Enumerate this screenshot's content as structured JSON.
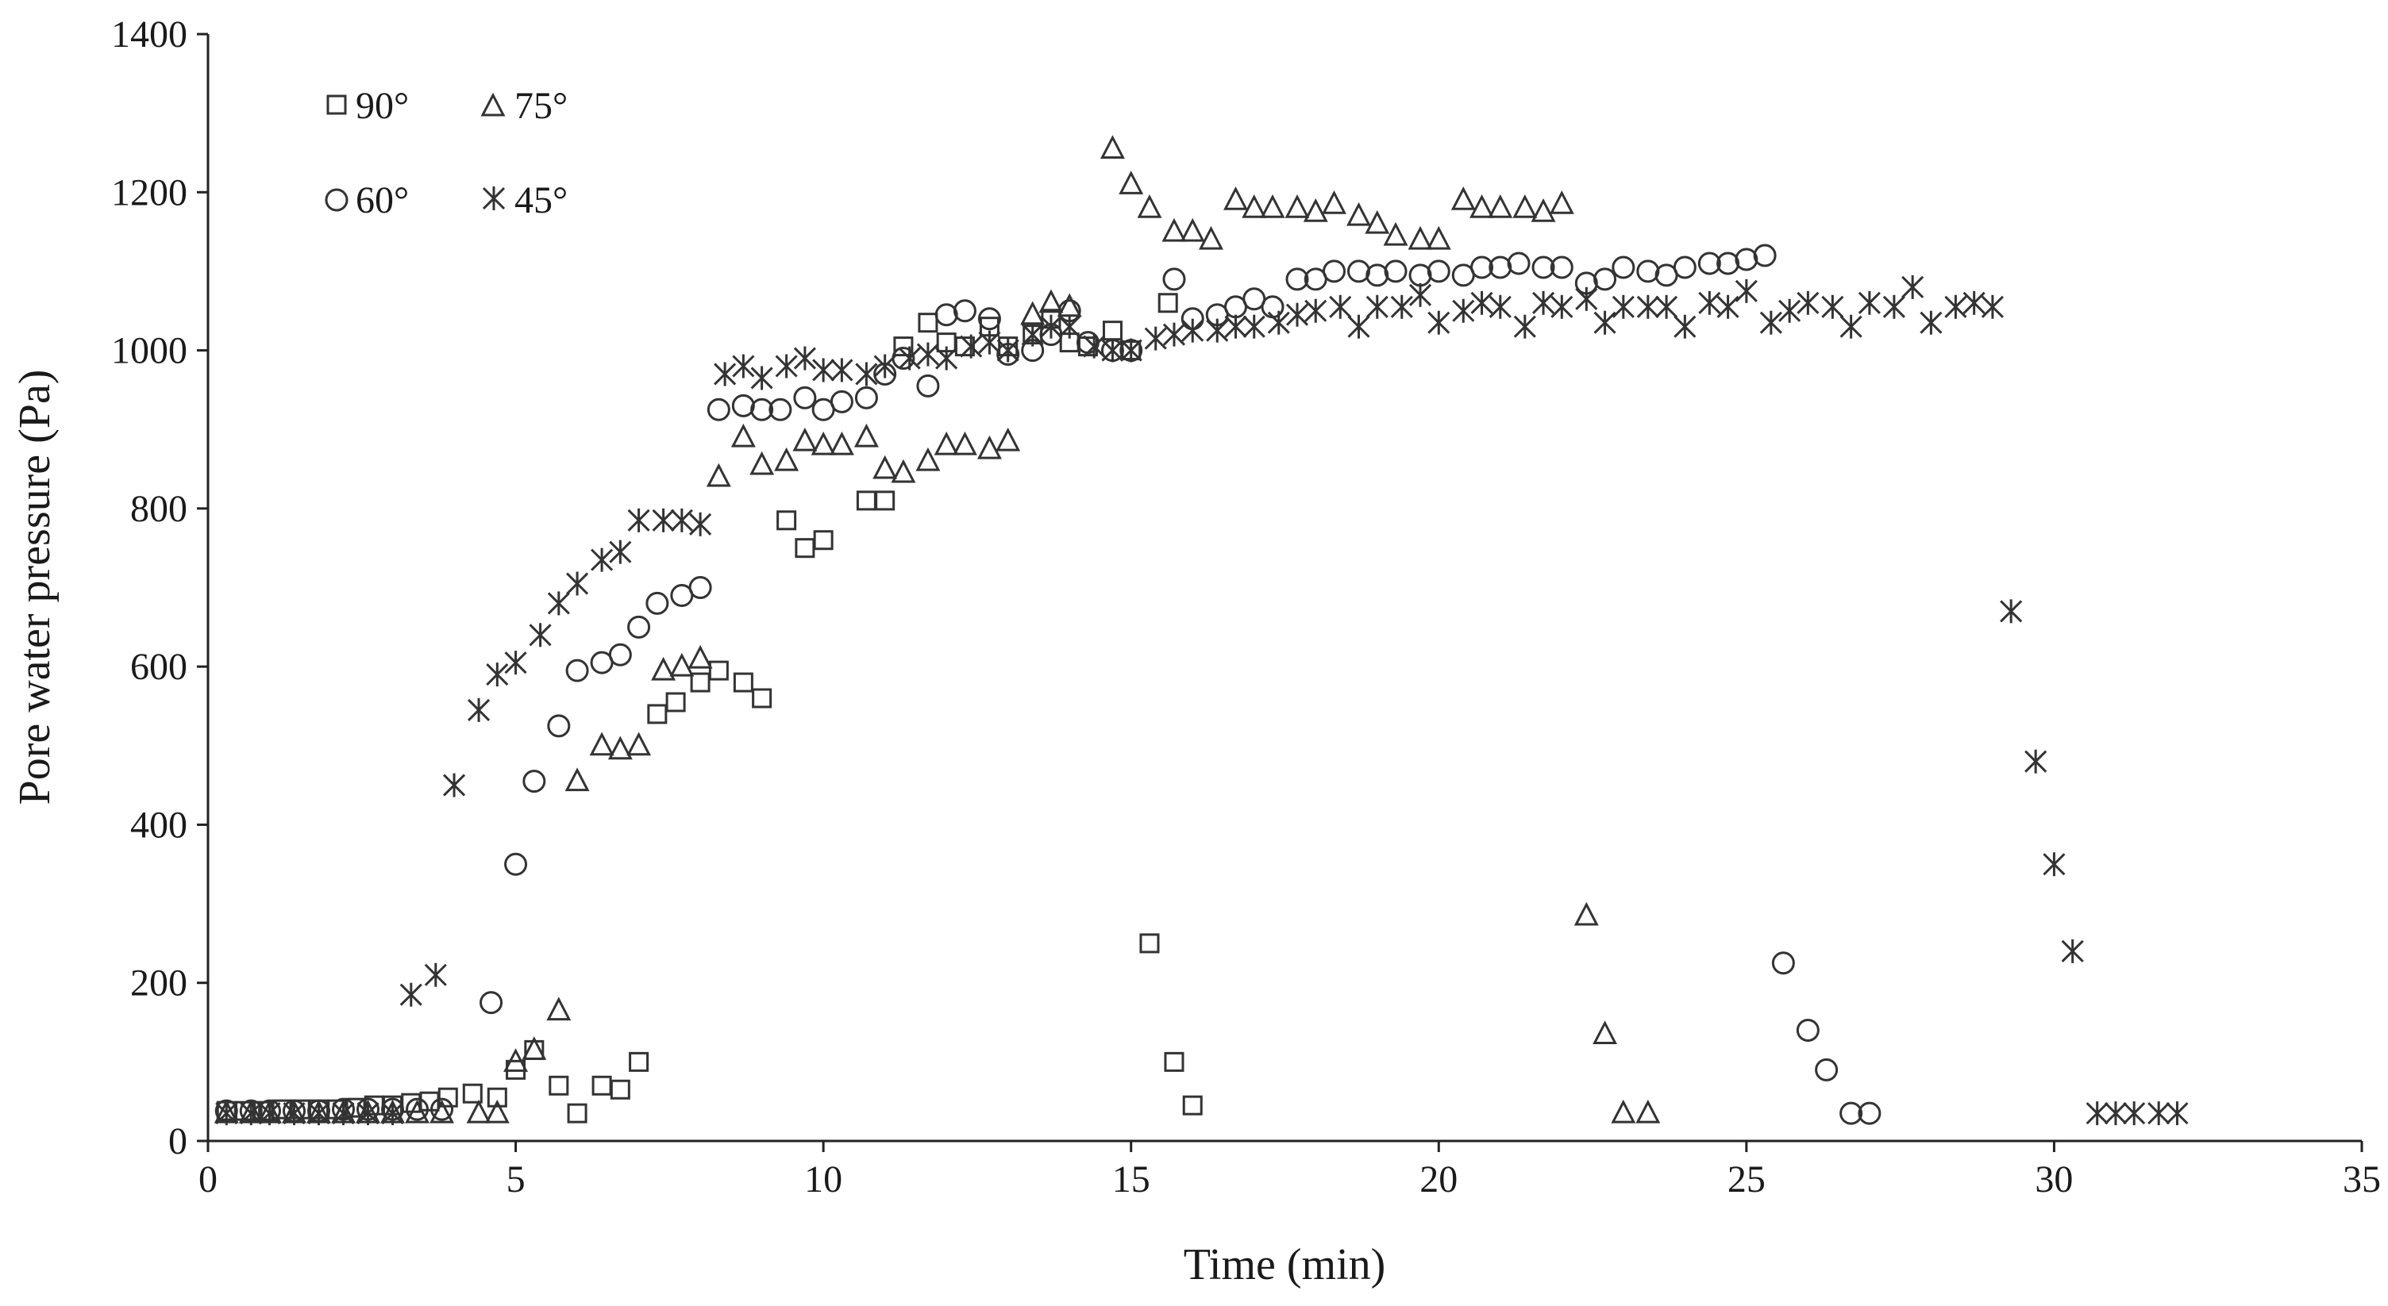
{
  "chart_data": {
    "type": "scatter",
    "title": "",
    "xlabel": "Time (min)",
    "ylabel": "Pore water pressure (Pa)",
    "xlim": [
      0,
      35
    ],
    "ylim": [
      0,
      1400
    ],
    "xticks": [
      "0",
      "5",
      "10",
      "15",
      "20",
      "25",
      "30",
      "35"
    ],
    "yticks": [
      "0",
      "200",
      "400",
      "600",
      "800",
      "1000",
      "1200",
      "1400"
    ],
    "grid": false,
    "legend_position": "top-left",
    "series": [
      {
        "name": "90°",
        "marker": "square",
        "points": [
          [
            0.3,
            38
          ],
          [
            0.6,
            38
          ],
          [
            0.9,
            38
          ],
          [
            1.2,
            40
          ],
          [
            1.5,
            40
          ],
          [
            1.8,
            40
          ],
          [
            2.1,
            40
          ],
          [
            2.4,
            42
          ],
          [
            2.7,
            45
          ],
          [
            3.0,
            45
          ],
          [
            3.3,
            48
          ],
          [
            3.6,
            50
          ],
          [
            3.9,
            55
          ],
          [
            4.3,
            60
          ],
          [
            4.7,
            55
          ],
          [
            5.0,
            90
          ],
          [
            5.3,
            115
          ],
          [
            5.7,
            70
          ],
          [
            6.0,
            35
          ],
          [
            6.4,
            70
          ],
          [
            6.7,
            65
          ],
          [
            7.0,
            100
          ],
          [
            7.3,
            540
          ],
          [
            7.6,
            555
          ],
          [
            8.0,
            580
          ],
          [
            8.3,
            595
          ],
          [
            8.7,
            580
          ],
          [
            9.0,
            560
          ],
          [
            9.4,
            785
          ],
          [
            9.7,
            750
          ],
          [
            10.0,
            760
          ],
          [
            10.7,
            810
          ],
          [
            11.0,
            810
          ],
          [
            11.3,
            1005
          ],
          [
            11.7,
            1035
          ],
          [
            12.0,
            1010
          ],
          [
            12.3,
            1005
          ],
          [
            12.7,
            1030
          ],
          [
            13.0,
            1005
          ],
          [
            13.4,
            1020
          ],
          [
            13.7,
            1040
          ],
          [
            14.0,
            1010
          ],
          [
            14.3,
            1005
          ],
          [
            14.7,
            1025
          ],
          [
            15.0,
            1000
          ],
          [
            15.3,
            250
          ],
          [
            15.6,
            1060
          ],
          [
            15.7,
            100
          ],
          [
            16.0,
            45
          ]
        ]
      },
      {
        "name": "75°",
        "marker": "triangle",
        "points": [
          [
            0.3,
            35
          ],
          [
            0.7,
            35
          ],
          [
            1.0,
            35
          ],
          [
            1.4,
            35
          ],
          [
            1.8,
            35
          ],
          [
            2.2,
            35
          ],
          [
            2.6,
            35
          ],
          [
            3.0,
            35
          ],
          [
            3.4,
            35
          ],
          [
            3.8,
            35
          ],
          [
            4.4,
            35
          ],
          [
            4.7,
            35
          ],
          [
            5.0,
            100
          ],
          [
            5.3,
            115
          ],
          [
            5.7,
            165
          ],
          [
            6.0,
            455
          ],
          [
            6.4,
            500
          ],
          [
            6.7,
            495
          ],
          [
            7.0,
            500
          ],
          [
            7.4,
            595
          ],
          [
            7.7,
            600
          ],
          [
            8.0,
            610
          ],
          [
            8.3,
            840
          ],
          [
            8.7,
            890
          ],
          [
            9.0,
            855
          ],
          [
            9.4,
            860
          ],
          [
            9.7,
            885
          ],
          [
            10.0,
            880
          ],
          [
            10.3,
            880
          ],
          [
            10.7,
            890
          ],
          [
            11.0,
            850
          ],
          [
            11.3,
            845
          ],
          [
            11.7,
            860
          ],
          [
            12.0,
            880
          ],
          [
            12.3,
            880
          ],
          [
            12.7,
            875
          ],
          [
            13.0,
            885
          ],
          [
            13.4,
            1045
          ],
          [
            13.7,
            1060
          ],
          [
            14.0,
            1055
          ],
          [
            14.7,
            1255
          ],
          [
            15.0,
            1210
          ],
          [
            15.3,
            1180
          ],
          [
            15.7,
            1150
          ],
          [
            16.0,
            1150
          ],
          [
            16.3,
            1140
          ],
          [
            16.7,
            1190
          ],
          [
            17.0,
            1180
          ],
          [
            17.3,
            1180
          ],
          [
            17.7,
            1180
          ],
          [
            18.0,
            1175
          ],
          [
            18.3,
            1185
          ],
          [
            18.7,
            1170
          ],
          [
            19.0,
            1160
          ],
          [
            19.3,
            1145
          ],
          [
            19.7,
            1140
          ],
          [
            20.0,
            1140
          ],
          [
            20.4,
            1190
          ],
          [
            20.7,
            1180
          ],
          [
            21.0,
            1180
          ],
          [
            21.4,
            1180
          ],
          [
            21.7,
            1175
          ],
          [
            22.0,
            1185
          ],
          [
            22.4,
            285
          ],
          [
            22.7,
            135
          ],
          [
            23.0,
            35
          ],
          [
            23.4,
            35
          ]
        ]
      },
      {
        "name": "60°",
        "marker": "circle",
        "points": [
          [
            0.3,
            38
          ],
          [
            0.7,
            38
          ],
          [
            1.0,
            38
          ],
          [
            1.4,
            38
          ],
          [
            1.8,
            38
          ],
          [
            2.2,
            40
          ],
          [
            2.6,
            40
          ],
          [
            3.0,
            40
          ],
          [
            3.4,
            40
          ],
          [
            3.8,
            40
          ],
          [
            4.6,
            175
          ],
          [
            5.0,
            350
          ],
          [
            5.3,
            455
          ],
          [
            5.7,
            525
          ],
          [
            6.0,
            595
          ],
          [
            6.4,
            605
          ],
          [
            6.7,
            615
          ],
          [
            7.0,
            650
          ],
          [
            7.3,
            680
          ],
          [
            7.7,
            690
          ],
          [
            8.0,
            700
          ],
          [
            8.3,
            925
          ],
          [
            8.7,
            930
          ],
          [
            9.0,
            925
          ],
          [
            9.3,
            925
          ],
          [
            9.7,
            940
          ],
          [
            10.0,
            925
          ],
          [
            10.3,
            935
          ],
          [
            10.7,
            940
          ],
          [
            11.0,
            970
          ],
          [
            11.3,
            990
          ],
          [
            11.7,
            955
          ],
          [
            12.0,
            1045
          ],
          [
            12.3,
            1050
          ],
          [
            12.7,
            1040
          ],
          [
            13.0,
            995
          ],
          [
            13.4,
            1000
          ],
          [
            13.7,
            1020
          ],
          [
            14.0,
            1050
          ],
          [
            14.3,
            1010
          ],
          [
            14.7,
            1000
          ],
          [
            15.0,
            1000
          ],
          [
            15.7,
            1090
          ],
          [
            16.0,
            1040
          ],
          [
            16.4,
            1045
          ],
          [
            16.7,
            1055
          ],
          [
            17.0,
            1065
          ],
          [
            17.3,
            1055
          ],
          [
            17.7,
            1090
          ],
          [
            18.0,
            1090
          ],
          [
            18.3,
            1100
          ],
          [
            18.7,
            1100
          ],
          [
            19.0,
            1095
          ],
          [
            19.3,
            1100
          ],
          [
            19.7,
            1095
          ],
          [
            20.0,
            1100
          ],
          [
            20.4,
            1095
          ],
          [
            20.7,
            1105
          ],
          [
            21.0,
            1105
          ],
          [
            21.3,
            1110
          ],
          [
            21.7,
            1105
          ],
          [
            22.0,
            1105
          ],
          [
            22.4,
            1085
          ],
          [
            22.7,
            1090
          ],
          [
            23.0,
            1105
          ],
          [
            23.4,
            1100
          ],
          [
            23.7,
            1095
          ],
          [
            24.0,
            1105
          ],
          [
            24.4,
            1110
          ],
          [
            24.7,
            1110
          ],
          [
            25.0,
            1115
          ],
          [
            25.3,
            1120
          ],
          [
            25.6,
            225
          ],
          [
            26.0,
            140
          ],
          [
            26.3,
            90
          ],
          [
            26.7,
            35
          ],
          [
            27.0,
            35
          ]
        ]
      },
      {
        "name": "45°",
        "marker": "asterisk",
        "points": [
          [
            0.3,
            35
          ],
          [
            0.7,
            35
          ],
          [
            1.0,
            35
          ],
          [
            1.4,
            35
          ],
          [
            1.8,
            35
          ],
          [
            2.2,
            35
          ],
          [
            2.6,
            35
          ],
          [
            3.0,
            35
          ],
          [
            3.3,
            185
          ],
          [
            3.7,
            210
          ],
          [
            4.0,
            450
          ],
          [
            4.4,
            545
          ],
          [
            4.7,
            590
          ],
          [
            5.0,
            605
          ],
          [
            5.4,
            640
          ],
          [
            5.7,
            680
          ],
          [
            6.0,
            705
          ],
          [
            6.4,
            735
          ],
          [
            6.7,
            745
          ],
          [
            7.0,
            785
          ],
          [
            7.4,
            785
          ],
          [
            7.7,
            785
          ],
          [
            8.0,
            780
          ],
          [
            8.4,
            970
          ],
          [
            8.7,
            980
          ],
          [
            9.0,
            965
          ],
          [
            9.4,
            980
          ],
          [
            9.7,
            990
          ],
          [
            10.0,
            975
          ],
          [
            10.3,
            975
          ],
          [
            10.7,
            970
          ],
          [
            11.0,
            980
          ],
          [
            11.4,
            990
          ],
          [
            11.7,
            995
          ],
          [
            12.0,
            990
          ],
          [
            12.4,
            1005
          ],
          [
            12.7,
            1010
          ],
          [
            13.0,
            1000
          ],
          [
            13.4,
            1020
          ],
          [
            13.7,
            1030
          ],
          [
            14.0,
            1030
          ],
          [
            14.4,
            1005
          ],
          [
            14.7,
            1000
          ],
          [
            15.0,
            1000
          ],
          [
            15.4,
            1015
          ],
          [
            15.7,
            1020
          ],
          [
            16.0,
            1025
          ],
          [
            16.4,
            1025
          ],
          [
            16.7,
            1030
          ],
          [
            17.0,
            1030
          ],
          [
            17.4,
            1035
          ],
          [
            17.7,
            1045
          ],
          [
            18.0,
            1050
          ],
          [
            18.4,
            1055
          ],
          [
            18.7,
            1030
          ],
          [
            19.0,
            1055
          ],
          [
            19.4,
            1055
          ],
          [
            19.7,
            1070
          ],
          [
            20.0,
            1035
          ],
          [
            20.4,
            1050
          ],
          [
            20.7,
            1060
          ],
          [
            21.0,
            1055
          ],
          [
            21.4,
            1030
          ],
          [
            21.7,
            1060
          ],
          [
            22.0,
            1055
          ],
          [
            22.4,
            1065
          ],
          [
            22.7,
            1035
          ],
          [
            23.0,
            1055
          ],
          [
            23.4,
            1055
          ],
          [
            23.7,
            1055
          ],
          [
            24.0,
            1030
          ],
          [
            24.4,
            1060
          ],
          [
            24.7,
            1055
          ],
          [
            25.0,
            1075
          ],
          [
            25.4,
            1035
          ],
          [
            25.7,
            1050
          ],
          [
            26.0,
            1060
          ],
          [
            26.4,
            1055
          ],
          [
            26.7,
            1030
          ],
          [
            27.0,
            1060
          ],
          [
            27.4,
            1055
          ],
          [
            27.7,
            1080
          ],
          [
            28.0,
            1035
          ],
          [
            28.4,
            1055
          ],
          [
            28.7,
            1060
          ],
          [
            29.0,
            1055
          ],
          [
            29.3,
            670
          ],
          [
            29.7,
            480
          ],
          [
            30.0,
            350
          ],
          [
            30.3,
            240
          ],
          [
            30.7,
            35
          ],
          [
            31.0,
            35
          ],
          [
            31.3,
            35
          ],
          [
            31.7,
            35
          ],
          [
            32.0,
            35
          ]
        ]
      }
    ]
  }
}
